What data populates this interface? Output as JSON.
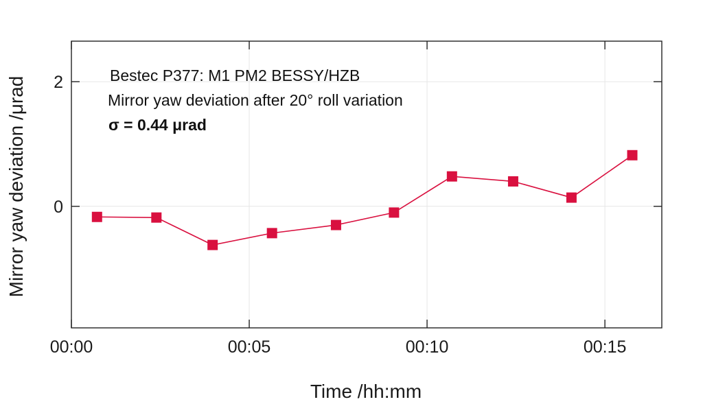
{
  "chart_data": {
    "type": "line",
    "title": "",
    "annotations": [
      "Bestec P377: M1 PM2 BESSY/HZB",
      "Mirror yaw deviation after 20° roll variation",
      "σ = 0.44 μrad"
    ],
    "xlabel": "Time /hh:mm",
    "ylabel": "Mirror yaw deviation /μrad",
    "x_unit": "minutes",
    "xlim": [
      0,
      16.6
    ],
    "ylim": [
      -1.95,
      2.65
    ],
    "x_ticks": [
      {
        "value": 0,
        "label": "00:00"
      },
      {
        "value": 5,
        "label": "00:05"
      },
      {
        "value": 10,
        "label": "00:10"
      },
      {
        "value": 15,
        "label": "00:15"
      }
    ],
    "y_ticks": [
      {
        "value": 0,
        "label": "0"
      },
      {
        "value": 2,
        "label": "2"
      }
    ],
    "grid": true,
    "series": [
      {
        "color": "#d9103f",
        "marker": "square",
        "points": [
          {
            "x": 0.72,
            "y": -0.17
          },
          {
            "x": 2.39,
            "y": -0.18
          },
          {
            "x": 3.97,
            "y": -0.62
          },
          {
            "x": 5.64,
            "y": -0.43
          },
          {
            "x": 7.44,
            "y": -0.3
          },
          {
            "x": 9.07,
            "y": -0.1
          },
          {
            "x": 10.7,
            "y": 0.48
          },
          {
            "x": 12.42,
            "y": 0.4
          },
          {
            "x": 14.06,
            "y": 0.14
          },
          {
            "x": 15.77,
            "y": 0.82
          }
        ]
      }
    ]
  }
}
